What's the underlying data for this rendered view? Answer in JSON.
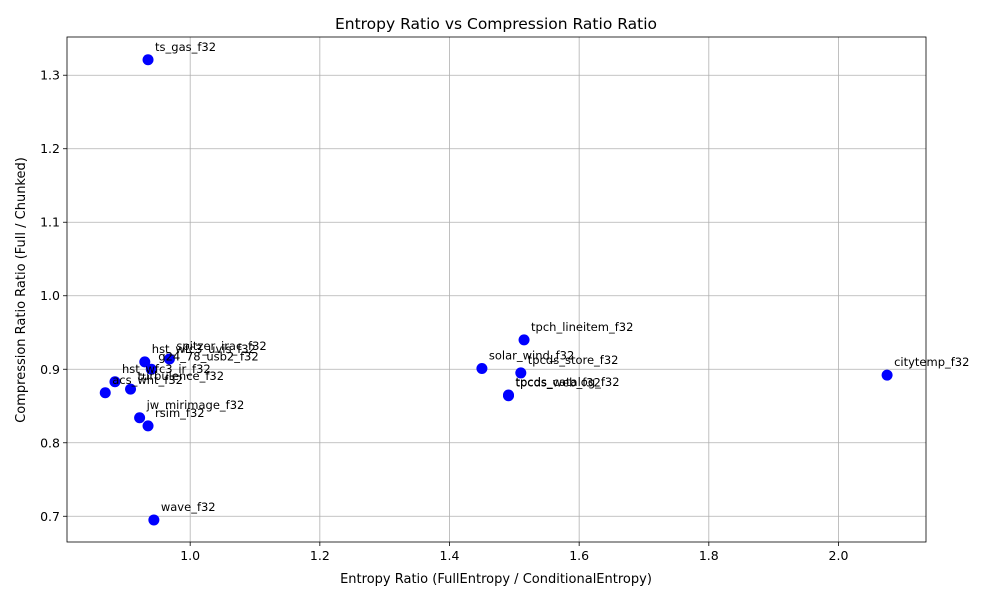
{
  "chart_data": {
    "type": "scatter",
    "title": "Entropy Ratio vs Compression Ratio Ratio",
    "xlabel": "Entropy Ratio (FullEntropy / ConditionalEntropy)",
    "ylabel": "Compression Ratio Ratio (Full / Chunked)",
    "xlim": [
      0.81,
      2.135
    ],
    "ylim": [
      0.665,
      1.352
    ],
    "xticks": [
      1.0,
      1.2,
      1.4,
      1.6,
      1.8,
      2.0
    ],
    "yticks": [
      0.7,
      0.8,
      0.9,
      1.0,
      1.1,
      1.2,
      1.3
    ],
    "grid": true,
    "marker_color": "#0000ff",
    "points": [
      {
        "label": "ts_gas_f32",
        "x": 0.935,
        "y": 1.321
      },
      {
        "label": "spitzer_irac_f32",
        "x": 0.968,
        "y": 0.914
      },
      {
        "label": "hst_wfc3_uvis_f32",
        "x": 0.93,
        "y": 0.91
      },
      {
        "label": "g24_78_usb2_f32",
        "x": 0.94,
        "y": 0.9
      },
      {
        "label": "hst_wfc3_ir_f32",
        "x": 0.884,
        "y": 0.883
      },
      {
        "label": "turbulence_f32",
        "x": 0.908,
        "y": 0.873
      },
      {
        "label": "acs_wht_f32",
        "x": 0.869,
        "y": 0.868
      },
      {
        "label": "jw_mirimage_f32",
        "x": 0.922,
        "y": 0.834
      },
      {
        "label": "rsim_f32",
        "x": 0.935,
        "y": 0.823
      },
      {
        "label": "wave_f32",
        "x": 0.944,
        "y": 0.695
      },
      {
        "label": "tpch_lineitem_f32",
        "x": 1.515,
        "y": 0.94
      },
      {
        "label": "solar_wind_f32",
        "x": 1.45,
        "y": 0.901
      },
      {
        "label": "tpcds_store_f32",
        "x": 1.51,
        "y": 0.895
      },
      {
        "label": "tpcds_catalog_f32",
        "x": 1.491,
        "y": 0.865
      },
      {
        "label": "tpcds_web_f32",
        "x": 1.491,
        "y": 0.864
      },
      {
        "label": "citytemp_f32",
        "x": 2.075,
        "y": 0.892
      }
    ]
  }
}
